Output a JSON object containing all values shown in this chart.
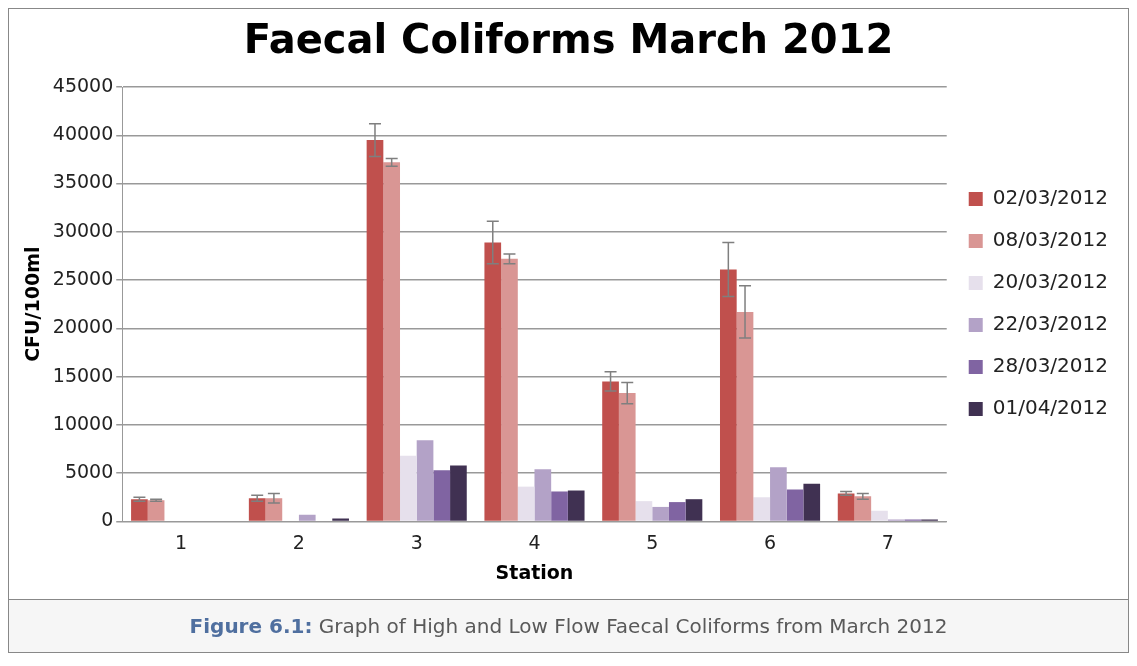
{
  "chart_data": {
    "type": "bar",
    "title": "Faecal Coliforms March 2012",
    "xlabel": "Station",
    "ylabel": "CFU/100ml",
    "categories": [
      "1",
      "2",
      "3",
      "4",
      "5",
      "6",
      "7"
    ],
    "series": [
      {
        "name": "02/03/2012",
        "color": "#c0504d",
        "values": [
          2300,
          2400,
          39500,
          28900,
          14500,
          26100,
          2900
        ],
        "errors": [
          200,
          300,
          1700,
          2200,
          1000,
          2800,
          200
        ]
      },
      {
        "name": "08/03/2012",
        "color": "#d99694",
        "values": [
          2200,
          2400,
          37200,
          27200,
          13300,
          21700,
          2600
        ],
        "errors": [
          100,
          500,
          400,
          500,
          1100,
          2700,
          300
        ]
      },
      {
        "name": "20/03/2012",
        "color": "#e6e0ec",
        "values": [
          null,
          null,
          6800,
          3600,
          2100,
          2500,
          1100
        ]
      },
      {
        "name": "22/03/2012",
        "color": "#b3a2c7",
        "values": [
          0,
          700,
          8400,
          5400,
          1500,
          5600,
          200
        ]
      },
      {
        "name": "28/03/2012",
        "color": "#8064a2",
        "values": [
          0,
          null,
          5300,
          3100,
          2000,
          3300,
          200
        ]
      },
      {
        "name": "01/04/2012",
        "color": "#403152",
        "values": [
          0,
          300,
          5800,
          3200,
          2300,
          3900,
          200
        ]
      }
    ],
    "ylim": [
      0,
      45000
    ],
    "yticks": [
      0,
      5000,
      10000,
      15000,
      20000,
      25000,
      30000,
      35000,
      40000,
      45000
    ],
    "grid": "y",
    "legend": "right",
    "annotations": [
      "Figure 6.1: Graph of High and Low Flow Faecal Coliforms from March 2012"
    ]
  }
}
